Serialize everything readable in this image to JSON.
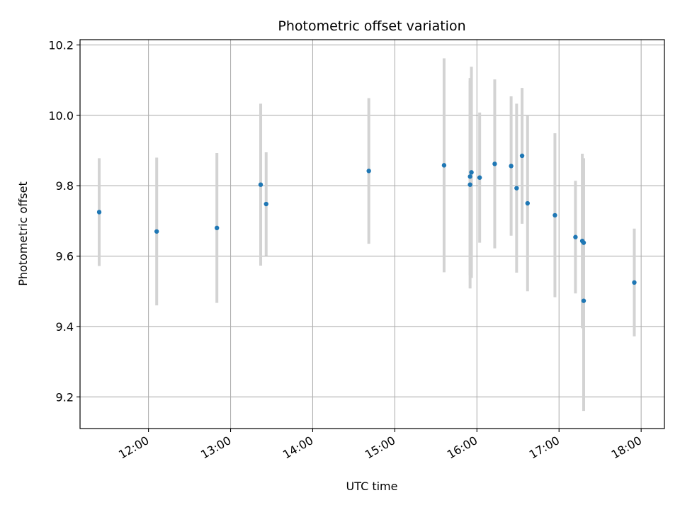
{
  "chart_data": {
    "type": "scatter",
    "title": "Photometric offset variation",
    "xlabel": "UTC time",
    "ylabel": "Photometric offset",
    "x_ticks": [
      "12:00",
      "13:00",
      "14:00",
      "15:00",
      "16:00",
      "17:00",
      "18:00"
    ],
    "y_ticks": [
      "9.2",
      "9.4",
      "9.6",
      "9.8",
      "10.0",
      "10.2"
    ],
    "xlim": [
      "11:10",
      "18:17"
    ],
    "ylim": [
      9.11,
      10.215
    ],
    "grid": true,
    "marker_color": "#1f77b4",
    "errorbar_color": "#d3d3d3",
    "series": [
      {
        "x": [
          "11:24",
          "12:06",
          "12:50",
          "13:22",
          "13:26",
          "14:41",
          "15:36",
          "15:55",
          "15:55",
          "15:56",
          "16:02",
          "16:13",
          "16:25",
          "16:29",
          "16:33",
          "16:37",
          "16:57",
          "17:12",
          "17:17",
          "17:18",
          "17:18",
          "17:55"
        ],
        "y": [
          9.725,
          9.67,
          9.68,
          9.803,
          9.748,
          9.842,
          9.858,
          9.803,
          9.826,
          9.838,
          9.823,
          9.862,
          9.856,
          9.793,
          9.885,
          9.75,
          9.716,
          9.654,
          9.643,
          9.638,
          9.473,
          9.525
        ],
        "yerr": [
          0.153,
          0.21,
          0.213,
          0.23,
          0.147,
          0.207,
          0.304,
          0.295,
          0.28,
          0.3,
          0.185,
          0.24,
          0.198,
          0.24,
          0.193,
          0.25,
          0.233,
          0.16,
          0.248,
          0.24,
          0.313,
          0.153
        ]
      }
    ]
  }
}
